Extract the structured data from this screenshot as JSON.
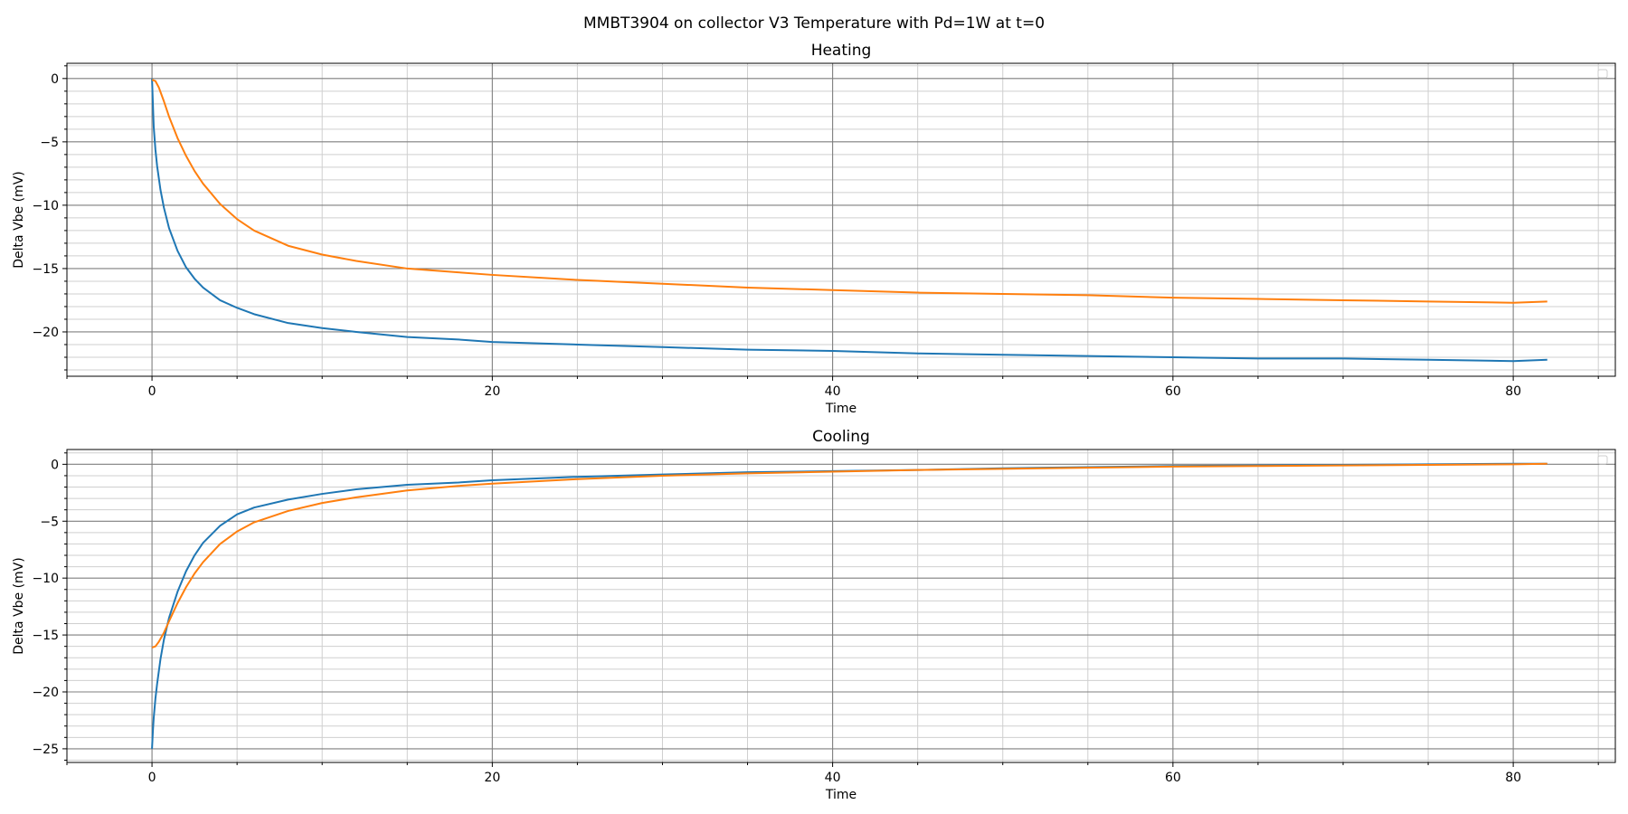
{
  "figure": {
    "suptitle": "MMBT3904 on collector V3 Temperature with Pd=1W at t=0"
  },
  "chart_data": [
    {
      "type": "line",
      "title": "Heating",
      "xlabel": "Time",
      "ylabel": "Delta Vbe (mV)",
      "xlim": [
        -5,
        86
      ],
      "ylim": [
        -23.5,
        1.2
      ],
      "xticks": [
        0,
        20,
        40,
        60,
        80
      ],
      "yticks": [
        0,
        -5,
        -10,
        -15,
        -20
      ],
      "grid": true,
      "legend": "top-right (empty)",
      "series": [
        {
          "color": "#1f77b4",
          "x": [
            0,
            0.1,
            0.2,
            0.3,
            0.5,
            0.7,
            1,
            1.5,
            2,
            2.5,
            3,
            4,
            5,
            6,
            8,
            10,
            12,
            15,
            18,
            20,
            25,
            30,
            35,
            40,
            45,
            50,
            55,
            60,
            65,
            70,
            75,
            80,
            82
          ],
          "y": [
            0,
            -3.8,
            -5.6,
            -6.9,
            -8.8,
            -10.2,
            -11.8,
            -13.6,
            -14.9,
            -15.8,
            -16.5,
            -17.5,
            -18.1,
            -18.6,
            -19.3,
            -19.7,
            -20.0,
            -20.4,
            -20.6,
            -20.8,
            -21.0,
            -21.2,
            -21.4,
            -21.5,
            -21.7,
            -21.8,
            -21.9,
            -22.0,
            -22.1,
            -22.1,
            -22.2,
            -22.3,
            -22.2
          ]
        },
        {
          "color": "#ff7f0e",
          "x": [
            0,
            0.2,
            0.4,
            0.7,
            1,
            1.5,
            2,
            2.5,
            3,
            4,
            5,
            6,
            8,
            10,
            12,
            15,
            18,
            20,
            25,
            30,
            35,
            40,
            45,
            50,
            55,
            60,
            65,
            70,
            75,
            80,
            82
          ],
          "y": [
            -0.1,
            -0.2,
            -0.7,
            -1.8,
            -3.0,
            -4.7,
            -6.1,
            -7.3,
            -8.3,
            -9.9,
            -11.1,
            -12.0,
            -13.2,
            -13.9,
            -14.4,
            -15.0,
            -15.3,
            -15.5,
            -15.9,
            -16.2,
            -16.5,
            -16.7,
            -16.9,
            -17.0,
            -17.1,
            -17.3,
            -17.4,
            -17.5,
            -17.6,
            -17.7,
            -17.6
          ]
        }
      ]
    },
    {
      "type": "line",
      "title": "Cooling",
      "xlabel": "Time",
      "ylabel": "Delta Vbe (mV)",
      "xlim": [
        -5,
        86
      ],
      "ylim": [
        -26.2,
        1.3
      ],
      "xticks": [
        0,
        20,
        40,
        60,
        80
      ],
      "yticks": [
        0,
        -5,
        -10,
        -15,
        -20,
        -25
      ],
      "grid": true,
      "legend": "top-right (empty)",
      "series": [
        {
          "color": "#1f77b4",
          "x": [
            0,
            0.05,
            0.1,
            0.2,
            0.3,
            0.5,
            0.7,
            1,
            1.5,
            2,
            2.5,
            3,
            4,
            5,
            6,
            8,
            10,
            12,
            15,
            18,
            20,
            25,
            30,
            35,
            40,
            45,
            50,
            55,
            60,
            65,
            70,
            75,
            80,
            82
          ],
          "y": [
            -25.0,
            -23.5,
            -22.3,
            -20.6,
            -19.3,
            -17.1,
            -15.4,
            -13.5,
            -11.2,
            -9.4,
            -8.0,
            -6.9,
            -5.4,
            -4.4,
            -3.8,
            -3.1,
            -2.6,
            -2.2,
            -1.8,
            -1.6,
            -1.4,
            -1.1,
            -0.9,
            -0.7,
            -0.6,
            -0.5,
            -0.35,
            -0.25,
            -0.15,
            -0.1,
            -0.05,
            0,
            0.05,
            0.05
          ]
        },
        {
          "color": "#ff7f0e",
          "x": [
            0,
            0.2,
            0.4,
            0.7,
            1,
            1.5,
            2,
            2.5,
            3,
            4,
            5,
            6,
            8,
            10,
            12,
            15,
            18,
            20,
            25,
            30,
            35,
            40,
            45,
            50,
            55,
            60,
            65,
            70,
            75,
            80,
            82
          ],
          "y": [
            -16.1,
            -16.0,
            -15.6,
            -14.8,
            -13.8,
            -12.2,
            -10.8,
            -9.6,
            -8.6,
            -7.0,
            -5.9,
            -5.1,
            -4.1,
            -3.4,
            -2.9,
            -2.3,
            -1.9,
            -1.7,
            -1.3,
            -1.0,
            -0.8,
            -0.65,
            -0.5,
            -0.4,
            -0.3,
            -0.2,
            -0.15,
            -0.1,
            -0.05,
            0,
            0.05
          ]
        }
      ]
    }
  ]
}
